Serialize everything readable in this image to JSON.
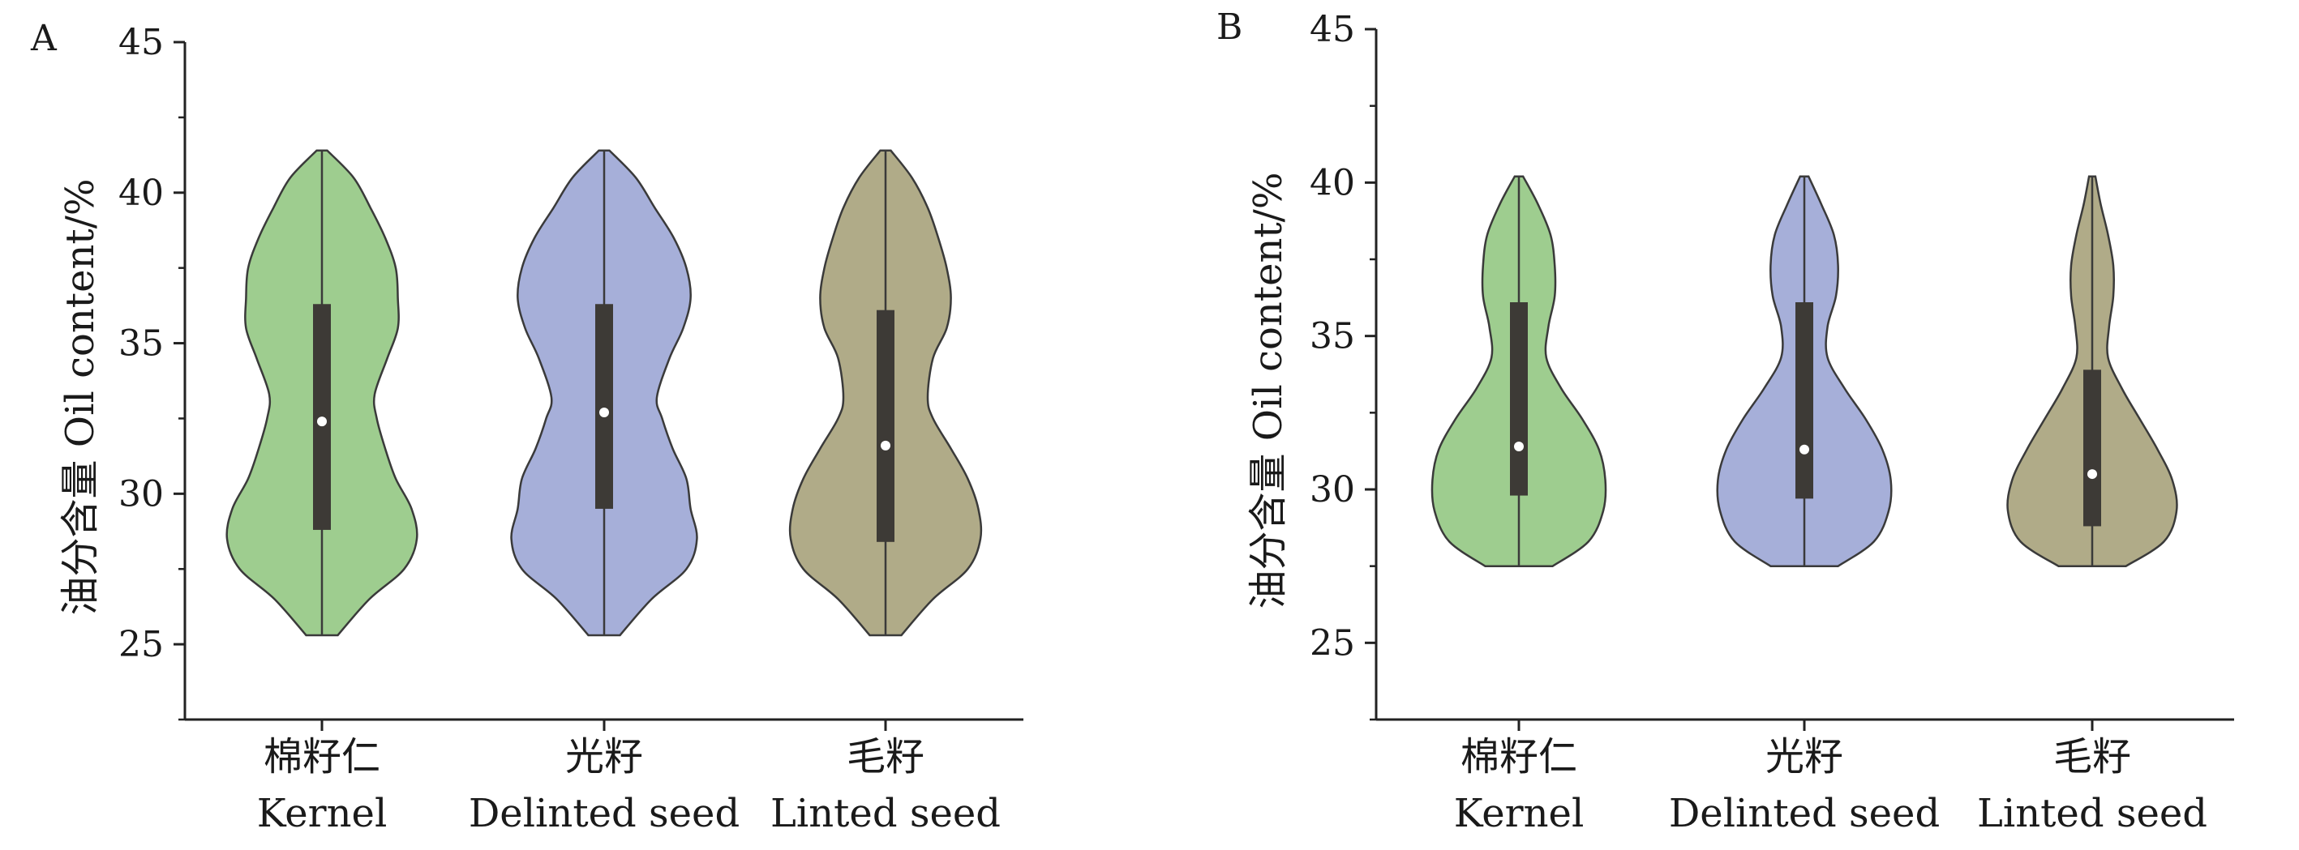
{
  "chart_data": [
    {
      "type": "violin",
      "panel_label": "A",
      "ylabel": "油分含量 Oil content/%",
      "ylim": [
        22.5,
        45
      ],
      "yticks": [
        25,
        30,
        35,
        40,
        45
      ],
      "grid": false,
      "categories": [
        {
          "cn": "棉籽仁",
          "en": "Kernel"
        },
        {
          "cn": "光籽",
          "en": "Delinted seed"
        },
        {
          "cn": "毛籽",
          "en": "Linted seed"
        }
      ],
      "series": [
        {
          "color": "#9ecd8f",
          "min": 25.3,
          "q1": 28.8,
          "median": 32.4,
          "q3": 36.3,
          "max": 41.4,
          "density": [
            [
              25.3,
              0.15
            ],
            [
              26.5,
              0.45
            ],
            [
              27.5,
              0.78
            ],
            [
              28.5,
              0.9
            ],
            [
              29.5,
              0.85
            ],
            [
              30.5,
              0.7
            ],
            [
              31.5,
              0.6
            ],
            [
              32.5,
              0.52
            ],
            [
              33.3,
              0.5
            ],
            [
              34.5,
              0.62
            ],
            [
              35.5,
              0.72
            ],
            [
              36.5,
              0.72
            ],
            [
              37.5,
              0.7
            ],
            [
              38.5,
              0.6
            ],
            [
              39.5,
              0.46
            ],
            [
              40.5,
              0.3
            ],
            [
              41.4,
              0.05
            ]
          ]
        },
        {
          "color": "#a6afd9",
          "min": 25.3,
          "q1": 29.5,
          "median": 32.7,
          "q3": 36.3,
          "max": 41.4,
          "density": [
            [
              25.3,
              0.15
            ],
            [
              26.5,
              0.45
            ],
            [
              27.5,
              0.78
            ],
            [
              28.5,
              0.88
            ],
            [
              29.5,
              0.82
            ],
            [
              30.5,
              0.78
            ],
            [
              31.5,
              0.65
            ],
            [
              32.5,
              0.55
            ],
            [
              33.2,
              0.5
            ],
            [
              34.5,
              0.62
            ],
            [
              35.5,
              0.75
            ],
            [
              36.5,
              0.82
            ],
            [
              37.5,
              0.78
            ],
            [
              38.5,
              0.66
            ],
            [
              39.5,
              0.48
            ],
            [
              40.5,
              0.3
            ],
            [
              41.4,
              0.05
            ]
          ]
        },
        {
          "color": "#b0ab88",
          "min": 25.3,
          "q1": 28.4,
          "median": 31.6,
          "q3": 36.1,
          "max": 41.4,
          "density": [
            [
              25.3,
              0.15
            ],
            [
              26.5,
              0.45
            ],
            [
              27.5,
              0.78
            ],
            [
              28.5,
              0.9
            ],
            [
              29.5,
              0.88
            ],
            [
              30.5,
              0.78
            ],
            [
              31.5,
              0.62
            ],
            [
              32.5,
              0.45
            ],
            [
              33.2,
              0.4
            ],
            [
              34.5,
              0.45
            ],
            [
              35.5,
              0.58
            ],
            [
              36.5,
              0.62
            ],
            [
              37.5,
              0.58
            ],
            [
              38.5,
              0.5
            ],
            [
              39.5,
              0.4
            ],
            [
              40.5,
              0.25
            ],
            [
              41.4,
              0.05
            ]
          ]
        }
      ]
    },
    {
      "type": "violin",
      "panel_label": "B",
      "ylabel": "油分含量 Oil content/%",
      "ylim": [
        22.5,
        45
      ],
      "yticks": [
        25,
        30,
        35,
        40,
        45
      ],
      "grid": false,
      "categories": [
        {
          "cn": "棉籽仁",
          "en": "Kernel"
        },
        {
          "cn": "光籽",
          "en": "Delinted seed"
        },
        {
          "cn": "毛籽",
          "en": "Linted seed"
        }
      ],
      "series": [
        {
          "color": "#9ecd8f",
          "min": 27.5,
          "q1": 29.8,
          "median": 31.4,
          "q3": 36.1,
          "max": 40.2,
          "density": [
            [
              27.5,
              0.32
            ],
            [
              28.3,
              0.66
            ],
            [
              29.3,
              0.8
            ],
            [
              30.3,
              0.82
            ],
            [
              31.3,
              0.76
            ],
            [
              32.3,
              0.6
            ],
            [
              33.3,
              0.4
            ],
            [
              34.3,
              0.26
            ],
            [
              35.3,
              0.28
            ],
            [
              36.3,
              0.34
            ],
            [
              37.3,
              0.34
            ],
            [
              38.3,
              0.3
            ],
            [
              39.3,
              0.18
            ],
            [
              40.2,
              0.04
            ]
          ]
        },
        {
          "color": "#a6afd9",
          "min": 27.5,
          "q1": 29.7,
          "median": 31.3,
          "q3": 36.1,
          "max": 40.2,
          "density": [
            [
              27.5,
              0.32
            ],
            [
              28.3,
              0.66
            ],
            [
              29.3,
              0.8
            ],
            [
              30.3,
              0.82
            ],
            [
              31.3,
              0.74
            ],
            [
              32.3,
              0.58
            ],
            [
              33.3,
              0.38
            ],
            [
              34.3,
              0.22
            ],
            [
              35.3,
              0.22
            ],
            [
              36.3,
              0.3
            ],
            [
              37.3,
              0.32
            ],
            [
              38.3,
              0.28
            ],
            [
              39.3,
              0.16
            ],
            [
              40.2,
              0.04
            ]
          ]
        },
        {
          "color": "#b0ab88",
          "min": 27.5,
          "q1": 28.8,
          "median": 30.5,
          "q3": 33.9,
          "max": 40.2,
          "density": [
            [
              27.5,
              0.32
            ],
            [
              28.3,
              0.68
            ],
            [
              29.3,
              0.8
            ],
            [
              30.3,
              0.76
            ],
            [
              31.3,
              0.62
            ],
            [
              32.3,
              0.45
            ],
            [
              33.3,
              0.28
            ],
            [
              34.3,
              0.15
            ],
            [
              35.3,
              0.16
            ],
            [
              36.3,
              0.2
            ],
            [
              37.3,
              0.2
            ],
            [
              38.3,
              0.15
            ],
            [
              39.3,
              0.08
            ],
            [
              40.2,
              0.03
            ]
          ]
        }
      ]
    }
  ]
}
